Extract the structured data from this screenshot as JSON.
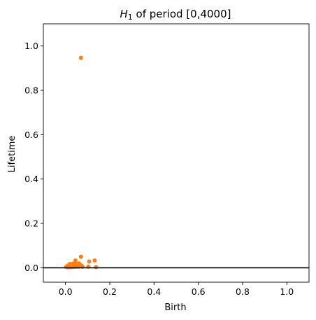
{
  "chart_data": {
    "type": "scatter",
    "title_italic": "H",
    "title_subscript": "1",
    "title_rest": " of period [0,4000]",
    "xlabel": "Birth",
    "ylabel": "Lifetime",
    "xlim": [
      -0.1,
      1.1
    ],
    "ylim": [
      -0.065,
      1.1
    ],
    "xticks": [
      "0.0",
      "0.2",
      "0.4",
      "0.6",
      "0.8",
      "1.0"
    ],
    "yticks": [
      "0.0",
      "0.2",
      "0.4",
      "0.6",
      "0.8",
      "1.0"
    ],
    "grid": false,
    "baseline_y": 0,
    "point_color": "#ff7f0e",
    "points": [
      {
        "x": 0.07,
        "y": 0.947
      },
      {
        "x": 0.07,
        "y": 0.05
      },
      {
        "x": 0.045,
        "y": 0.033
      },
      {
        "x": 0.107,
        "y": 0.028
      },
      {
        "x": 0.132,
        "y": 0.033
      },
      {
        "x": 0.138,
        "y": 0.003
      },
      {
        "x": 0.103,
        "y": 0.005
      },
      {
        "x": 0.003,
        "y": 0.004
      },
      {
        "x": 0.008,
        "y": 0.006
      },
      {
        "x": 0.012,
        "y": 0.002
      },
      {
        "x": 0.015,
        "y": 0.009
      },
      {
        "x": 0.018,
        "y": 0.004
      },
      {
        "x": 0.021,
        "y": 0.012
      },
      {
        "x": 0.024,
        "y": 0.007
      },
      {
        "x": 0.027,
        "y": 0.003
      },
      {
        "x": 0.03,
        "y": 0.014
      },
      {
        "x": 0.033,
        "y": 0.008
      },
      {
        "x": 0.036,
        "y": 0.005
      },
      {
        "x": 0.04,
        "y": 0.011
      },
      {
        "x": 0.043,
        "y": 0.004
      },
      {
        "x": 0.047,
        "y": 0.016
      },
      {
        "x": 0.05,
        "y": 0.009
      },
      {
        "x": 0.054,
        "y": 0.013
      },
      {
        "x": 0.058,
        "y": 0.004
      },
      {
        "x": 0.062,
        "y": 0.018
      },
      {
        "x": 0.065,
        "y": 0.007
      },
      {
        "x": 0.073,
        "y": 0.01
      },
      {
        "x": 0.077,
        "y": 0.005
      },
      {
        "x": 0.02,
        "y": 0.017
      },
      {
        "x": 0.035,
        "y": 0.019
      },
      {
        "x": 0.01,
        "y": 0.01
      },
      {
        "x": 0.028,
        "y": 0.015
      },
      {
        "x": 0.06,
        "y": 0.02
      }
    ]
  }
}
